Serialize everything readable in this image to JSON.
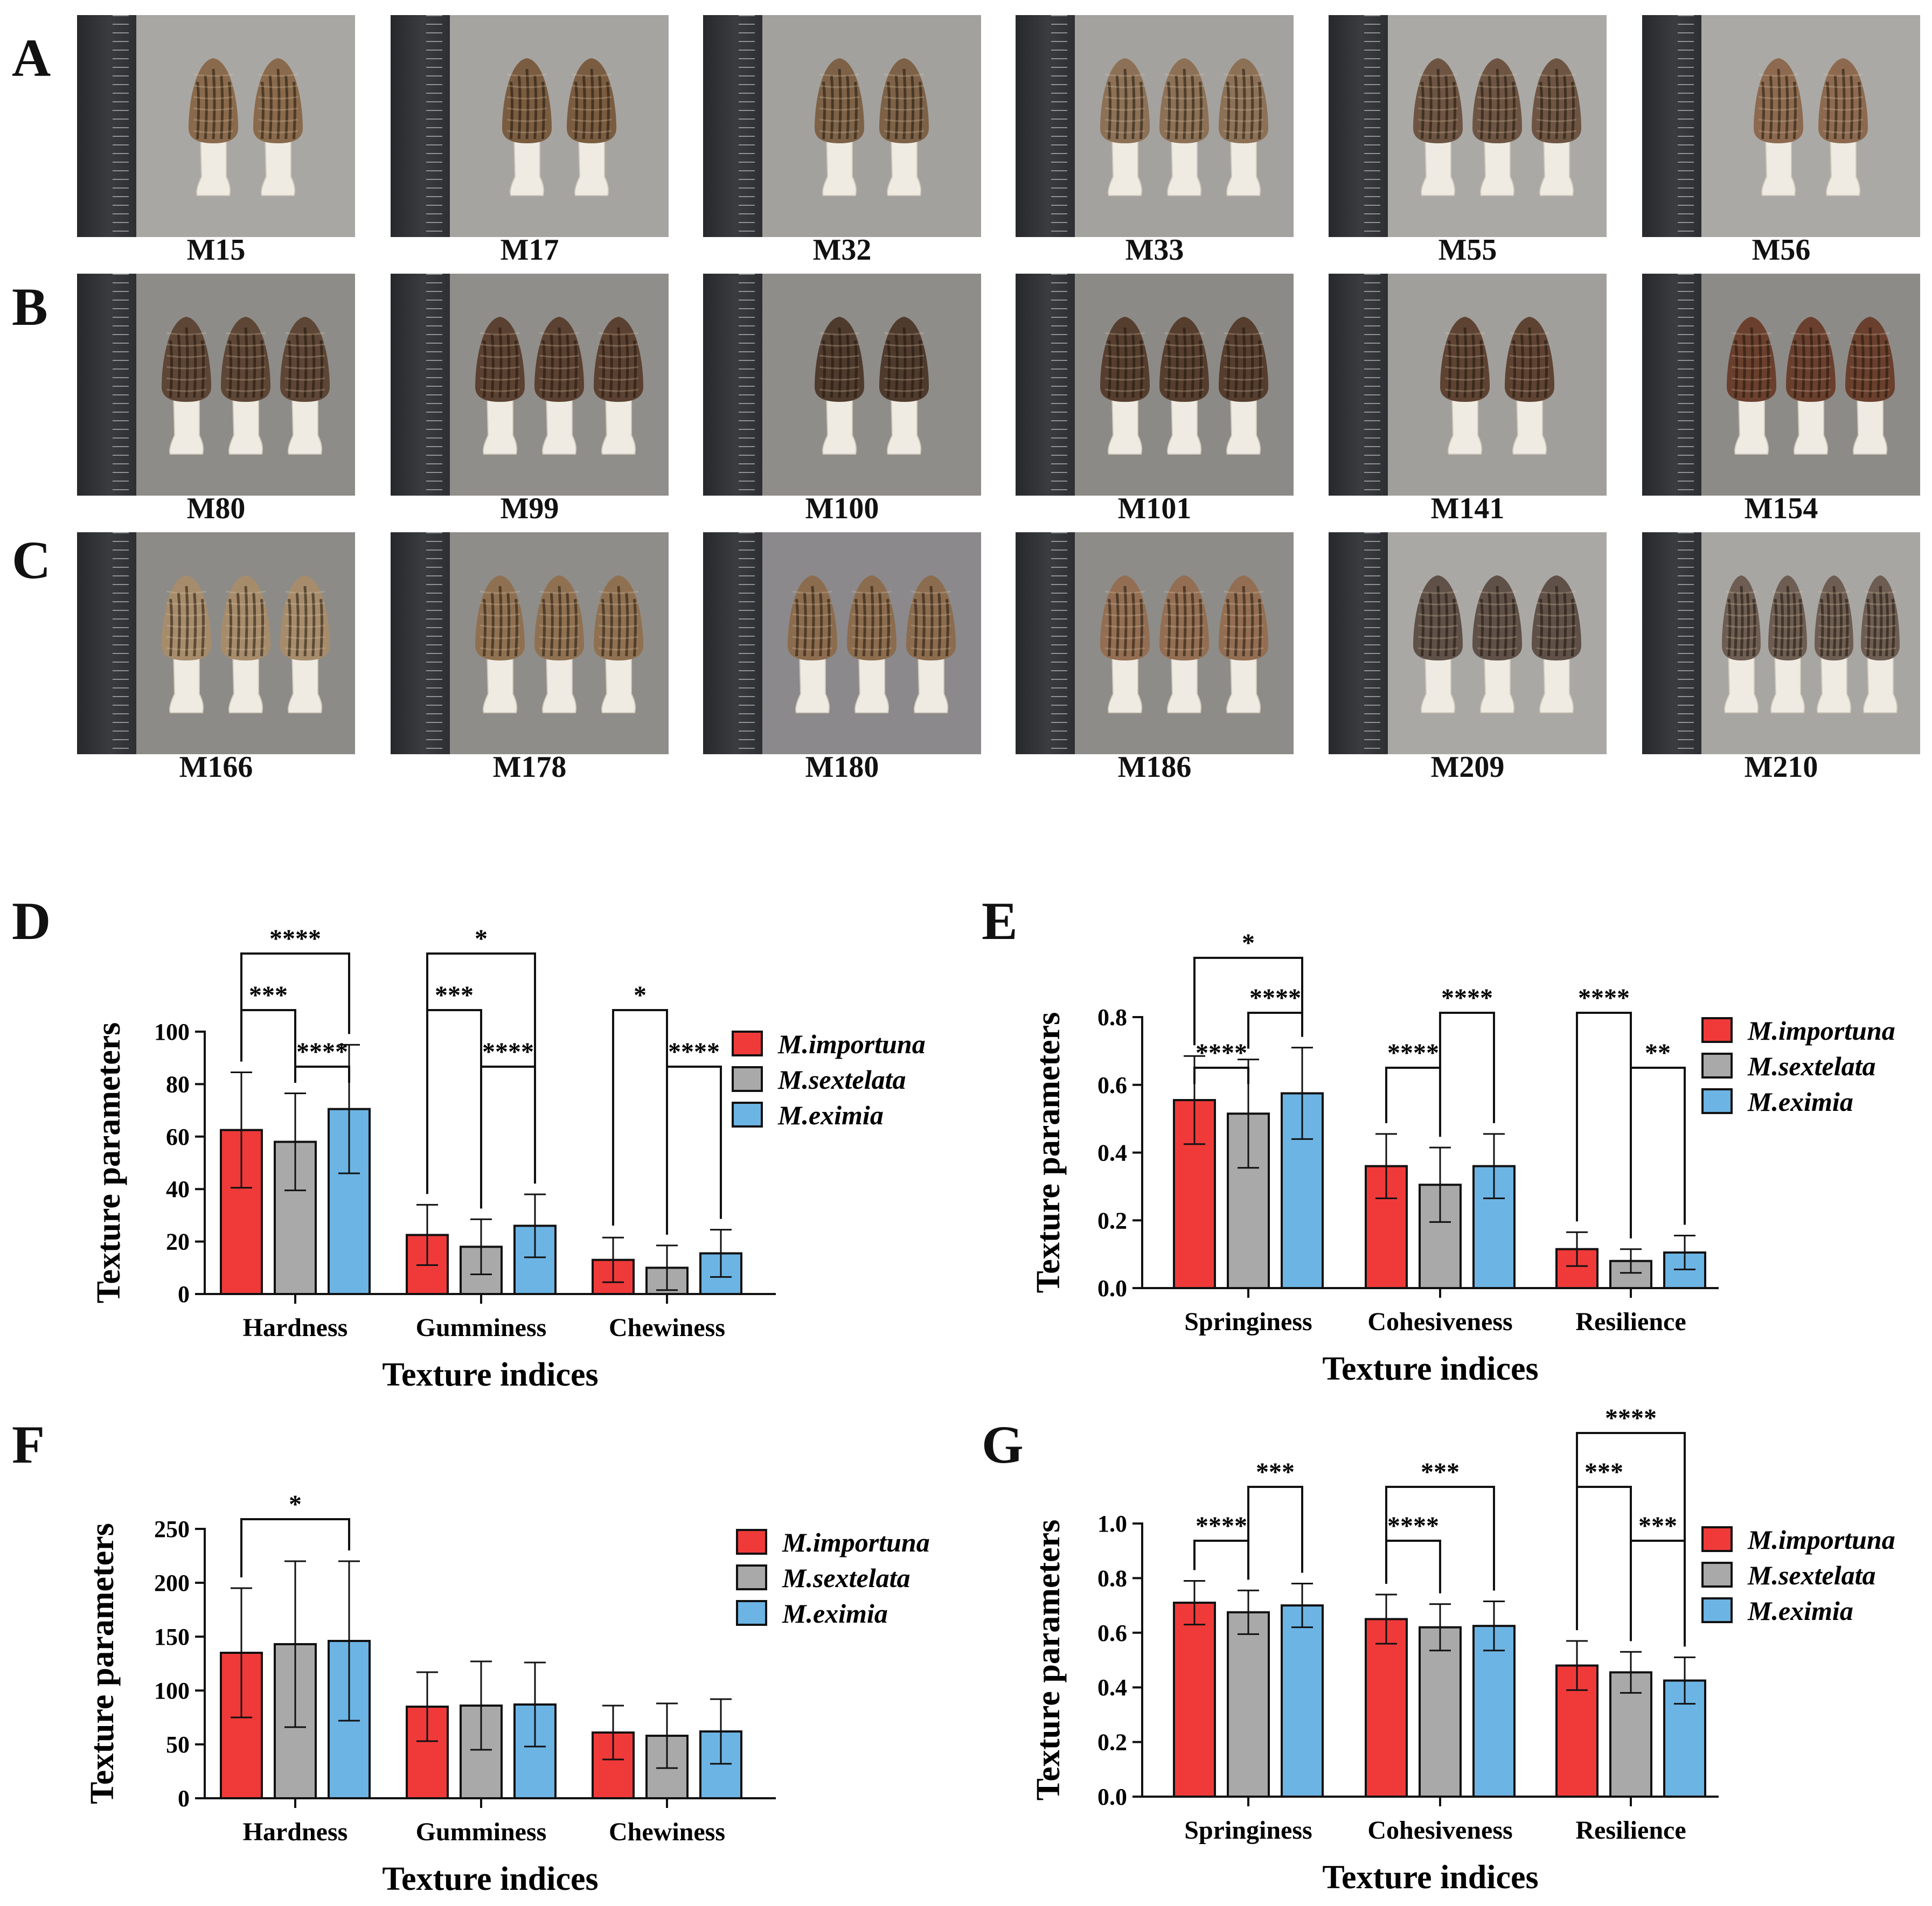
{
  "panels": {
    "letters": [
      "A",
      "B",
      "C",
      "D",
      "E",
      "F",
      "G"
    ]
  },
  "photos": {
    "rows": [
      {
        "letter": "A",
        "samples": [
          {
            "label": "M15",
            "count": 2,
            "cap": "#8a6a4c",
            "bg": "#a9a7a3"
          },
          {
            "label": "M17",
            "count": 2,
            "cap": "#7a5c40",
            "bg": "#a6a4a1"
          },
          {
            "label": "M32",
            "count": 2,
            "cap": "#7d6248",
            "bg": "#a3a19d"
          },
          {
            "label": "M33",
            "count": 3,
            "cap": "#8c7156",
            "bg": "#a4a29f"
          },
          {
            "label": "M55",
            "count": 3,
            "cap": "#6e5543",
            "bg": "#aaa9a5"
          },
          {
            "label": "M56",
            "count": 2,
            "cap": "#8d6a4f",
            "bg": "#aba9a6"
          }
        ]
      },
      {
        "letter": "B",
        "samples": [
          {
            "label": "M80",
            "count": 3,
            "cap": "#5e4636",
            "bg": "#8e8c88"
          },
          {
            "label": "M99",
            "count": 3,
            "cap": "#5b4131",
            "bg": "#908e8a"
          },
          {
            "label": "M100",
            "count": 2,
            "cap": "#4f3b2e",
            "bg": "#8f8d89"
          },
          {
            "label": "M101",
            "count": 3,
            "cap": "#563e2f",
            "bg": "#8c8a86"
          },
          {
            "label": "M141",
            "count": 2,
            "cap": "#5e4333",
            "bg": "#a19f9b"
          },
          {
            "label": "M154",
            "count": 3,
            "cap": "#6a3f2e",
            "bg": "#8d8b87"
          }
        ]
      },
      {
        "letter": "C",
        "samples": [
          {
            "label": "M166",
            "count": 3,
            "cap": "#a78c6c",
            "bg": "#8d8b87"
          },
          {
            "label": "M178",
            "count": 3,
            "cap": "#8f7152",
            "bg": "#8f8d89"
          },
          {
            "label": "M180",
            "count": 3,
            "cap": "#8c6c4e",
            "bg": "#8b898b"
          },
          {
            "label": "M186",
            "count": 3,
            "cap": "#936e52",
            "bg": "#8e8c88"
          },
          {
            "label": "M209",
            "count": 3,
            "cap": "#5f5048",
            "bg": "#a9a8a4"
          },
          {
            "label": "M210",
            "count": 4,
            "cap": "#6e5d52",
            "bg": "#a7a6a2"
          }
        ]
      }
    ]
  },
  "chart_data": [
    {
      "panel": "D",
      "type": "bar",
      "categories": [
        "Hardness",
        "Gumminess",
        "Chewiness"
      ],
      "series": [
        {
          "name": "M.importuna",
          "values": [
            62.5,
            22.5,
            13
          ],
          "errors": [
            22,
            11.5,
            8.5
          ]
        },
        {
          "name": "M.sextelata",
          "values": [
            58,
            18,
            10
          ],
          "errors": [
            18.5,
            10.5,
            8.5
          ]
        },
        {
          "name": "M.eximia",
          "values": [
            70.5,
            26,
            15.5
          ],
          "errors": [
            24.5,
            12,
            9
          ]
        }
      ],
      "ylim": [
        0,
        100
      ],
      "yticks": [
        0,
        20,
        40,
        60,
        80,
        100
      ],
      "ylabel": "Texture parameters",
      "xlabel": "Texture indices",
      "significance": [
        {
          "category": 0,
          "from": 0,
          "to": 1,
          "label": "***",
          "level": 0
        },
        {
          "category": 0,
          "from": 0,
          "to": 2,
          "label": "****",
          "level": 1
        },
        {
          "category": 0,
          "from": 1,
          "to": 2,
          "label": "****",
          "level": -1
        },
        {
          "category": 1,
          "from": 0,
          "to": 1,
          "label": "***",
          "level": 0
        },
        {
          "category": 1,
          "from": 0,
          "to": 2,
          "label": "*",
          "level": 1
        },
        {
          "category": 1,
          "from": 1,
          "to": 2,
          "label": "****",
          "level": -1
        },
        {
          "category": 2,
          "from": 0,
          "to": 1,
          "label": "*",
          "level": 0
        },
        {
          "category": 2,
          "from": 1,
          "to": 2,
          "label": "****",
          "level": -1
        }
      ]
    },
    {
      "panel": "E",
      "type": "bar",
      "categories": [
        "Springiness",
        "Cohesiveness",
        "Resilience"
      ],
      "series": [
        {
          "name": "M.importuna",
          "values": [
            0.555,
            0.36,
            0.115
          ],
          "errors": [
            0.13,
            0.095,
            0.05
          ]
        },
        {
          "name": "M.sextelata",
          "values": [
            0.515,
            0.305,
            0.08
          ],
          "errors": [
            0.16,
            0.11,
            0.035
          ]
        },
        {
          "name": "M.eximia",
          "values": [
            0.575,
            0.36,
            0.105
          ],
          "errors": [
            0.135,
            0.095,
            0.05
          ]
        }
      ],
      "ylim": [
        0,
        0.8
      ],
      "yticks": [
        0.0,
        0.2,
        0.4,
        0.6,
        0.8
      ],
      "ylabel": "Texture parameters",
      "xlabel": "Texture indices",
      "significance": [
        {
          "category": 0,
          "from": 0,
          "to": 1,
          "label": "****",
          "level": -1
        },
        {
          "category": 0,
          "from": 0,
          "to": 2,
          "label": "*",
          "level": 1
        },
        {
          "category": 0,
          "from": 1,
          "to": 2,
          "label": "****",
          "level": 0
        },
        {
          "category": 1,
          "from": 0,
          "to": 1,
          "label": "****",
          "level": -1
        },
        {
          "category": 1,
          "from": 1,
          "to": 2,
          "label": "****",
          "level": 0
        },
        {
          "category": 2,
          "from": 0,
          "to": 1,
          "label": "****",
          "level": 0
        },
        {
          "category": 2,
          "from": 1,
          "to": 2,
          "label": "**",
          "level": -1
        }
      ]
    },
    {
      "panel": "F",
      "type": "bar",
      "categories": [
        "Hardness",
        "Gumminess",
        "Chewiness"
      ],
      "series": [
        {
          "name": "M.importuna",
          "values": [
            135,
            85,
            61
          ],
          "errors": [
            60,
            32,
            25
          ]
        },
        {
          "name": "M.sextelata",
          "values": [
            143,
            86,
            58
          ],
          "errors": [
            77,
            41,
            30
          ]
        },
        {
          "name": "M.eximia",
          "values": [
            146,
            87,
            62
          ],
          "errors": [
            74,
            39,
            30
          ]
        }
      ],
      "ylim": [
        0,
        250
      ],
      "yticks": [
        0,
        50,
        100,
        150,
        200,
        250
      ],
      "ylabel": "Texture parameters",
      "xlabel": "Texture indices",
      "significance": [
        {
          "category": 0,
          "from": 0,
          "to": 2,
          "label": "*",
          "level": 0
        }
      ]
    },
    {
      "panel": "G",
      "type": "bar",
      "categories": [
        "Springiness",
        "Cohesiveness",
        "Resilience"
      ],
      "series": [
        {
          "name": "M.importuna",
          "values": [
            0.71,
            0.65,
            0.48
          ],
          "errors": [
            0.08,
            0.09,
            0.09
          ]
        },
        {
          "name": "M.sextelata",
          "values": [
            0.675,
            0.62,
            0.455
          ],
          "errors": [
            0.08,
            0.085,
            0.075
          ]
        },
        {
          "name": "M.eximia",
          "values": [
            0.7,
            0.625,
            0.425
          ],
          "errors": [
            0.08,
            0.09,
            0.085
          ]
        }
      ],
      "ylim": [
        0,
        1.0
      ],
      "yticks": [
        0.0,
        0.2,
        0.4,
        0.6,
        0.8,
        1.0
      ],
      "ylabel": "Texture parameters",
      "xlabel": "Texture indices",
      "significance": [
        {
          "category": 0,
          "from": 0,
          "to": 1,
          "label": "****",
          "level": 0
        },
        {
          "category": 0,
          "from": 1,
          "to": 2,
          "label": "***",
          "level": 1
        },
        {
          "category": 1,
          "from": 0,
          "to": 1,
          "label": "****",
          "level": 0
        },
        {
          "category": 1,
          "from": 0,
          "to": 2,
          "label": "***",
          "level": 1
        },
        {
          "category": 2,
          "from": 0,
          "to": 1,
          "label": "***",
          "level": 1
        },
        {
          "category": 2,
          "from": 0,
          "to": 2,
          "label": "****",
          "level": 2
        },
        {
          "category": 2,
          "from": 1,
          "to": 2,
          "label": "***",
          "level": 0
        }
      ]
    }
  ],
  "colors": {
    "M.importuna": "#f03a3a",
    "M.sextelata": "#a9a9a9",
    "M.eximia": "#6cb4e4",
    "axis": "#111111"
  }
}
